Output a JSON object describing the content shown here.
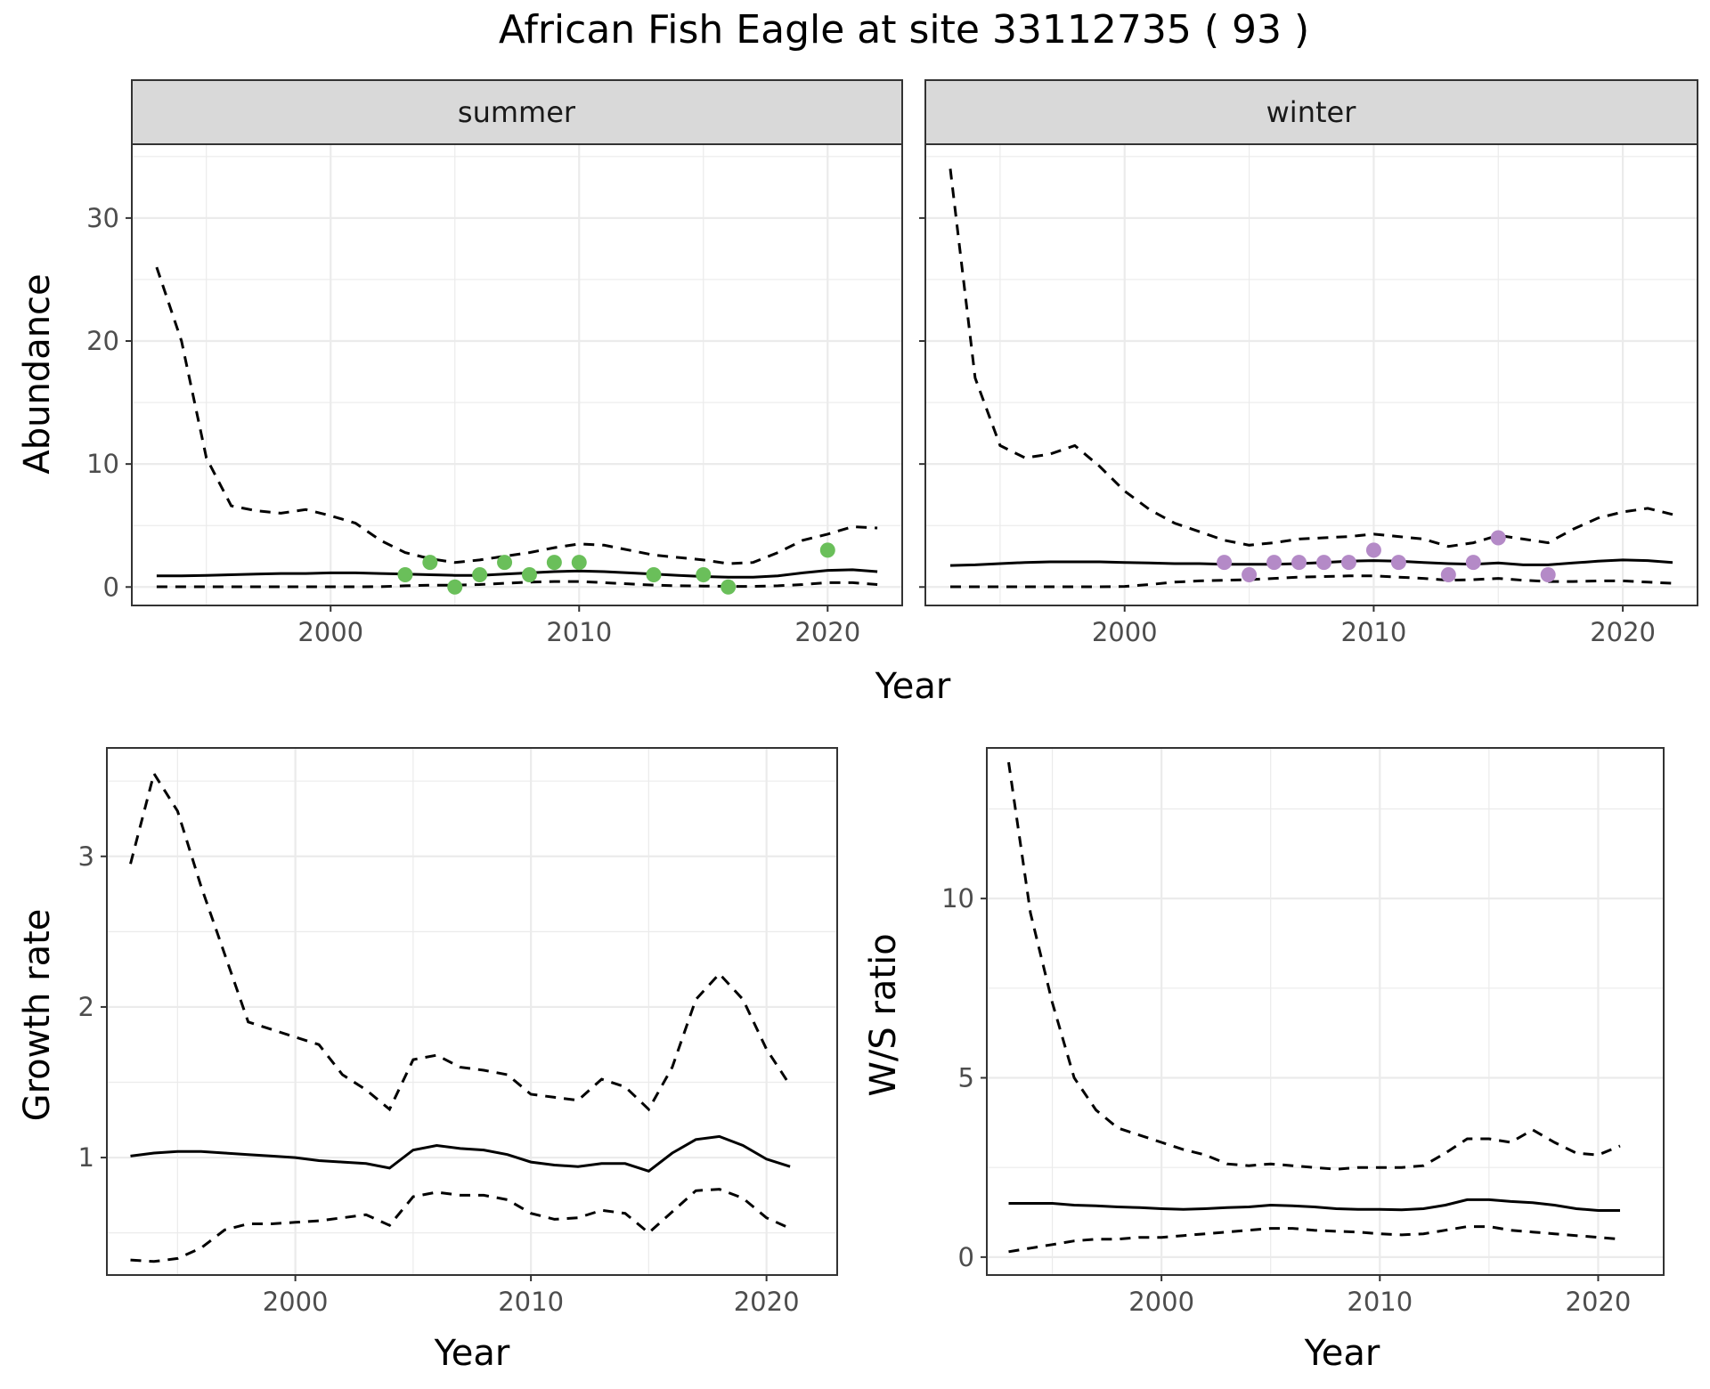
{
  "figure": {
    "title": "African Fish Eagle at site 33112735 ( 93 )"
  },
  "colors": {
    "summer_points": "#6abf5a",
    "winter_points": "#b48ac7",
    "lines": "#000000",
    "strip_bg": "#d9d9d9",
    "grid": "#ebebeb",
    "panel_border": "#333333"
  },
  "chart_data": [
    {
      "type": "line",
      "facet": "summer",
      "xlabel": "Year",
      "ylabel": "Abundance",
      "xlim": [
        1992,
        2023
      ],
      "ylim": [
        -1.5,
        36
      ],
      "x_ticks": [
        2000,
        2010,
        2020
      ],
      "y_ticks": [
        0,
        10,
        20,
        30
      ],
      "grid": true,
      "series": [
        {
          "style": "dashed",
          "x": [
            1993,
            1994,
            1995,
            1996,
            1997,
            1998,
            1999,
            2000,
            2001,
            2002,
            2003,
            2004,
            2005,
            2006,
            2007,
            2008,
            2009,
            2010,
            2011,
            2012,
            2013,
            2014,
            2015,
            2016,
            2017,
            2018,
            2019,
            2020,
            2021,
            2022
          ],
          "values": [
            26,
            20,
            10.5,
            6.6,
            6.2,
            6,
            6.3,
            5.8,
            5.2,
            3.8,
            2.8,
            2.3,
            2,
            2.2,
            2.5,
            2.8,
            3.2,
            3.5,
            3.4,
            3,
            2.6,
            2.4,
            2.2,
            1.9,
            2,
            2.8,
            3.8,
            4.3,
            4.9,
            4.8
          ]
        },
        {
          "style": "solid",
          "x": [
            1993,
            1994,
            1995,
            1996,
            1997,
            1998,
            1999,
            2000,
            2001,
            2002,
            2003,
            2004,
            2005,
            2006,
            2007,
            2008,
            2009,
            2010,
            2011,
            2012,
            2013,
            2014,
            2015,
            2016,
            2017,
            2018,
            2019,
            2020,
            2021,
            2022
          ],
          "values": [
            0.9,
            0.9,
            0.95,
            1,
            1.05,
            1.1,
            1.1,
            1.15,
            1.15,
            1.1,
            1.05,
            1,
            0.95,
            0.95,
            1.05,
            1.15,
            1.25,
            1.3,
            1.25,
            1.15,
            1.05,
            0.95,
            0.85,
            0.8,
            0.8,
            0.9,
            1.15,
            1.35,
            1.4,
            1.25
          ]
        },
        {
          "style": "dashed",
          "x": [
            1993,
            1994,
            1995,
            1996,
            1997,
            1998,
            1999,
            2000,
            2001,
            2002,
            2003,
            2004,
            2005,
            2006,
            2007,
            2008,
            2009,
            2010,
            2011,
            2012,
            2013,
            2014,
            2015,
            2016,
            2017,
            2018,
            2019,
            2020,
            2021,
            2022
          ],
          "values": [
            0.02,
            0.02,
            0.02,
            0.02,
            0.02,
            0.02,
            0.02,
            0.02,
            0.02,
            0.03,
            0.1,
            0.15,
            0.15,
            0.2,
            0.3,
            0.4,
            0.45,
            0.45,
            0.35,
            0.25,
            0.15,
            0.1,
            0.08,
            0.05,
            0.05,
            0.1,
            0.2,
            0.35,
            0.35,
            0.2
          ]
        }
      ],
      "points": {
        "x": [
          2003,
          2004,
          2005,
          2006,
          2007,
          2008,
          2009,
          2010,
          2013,
          2015,
          2016,
          2020
        ],
        "values": [
          1,
          2,
          0,
          1,
          2,
          1,
          2,
          2,
          1,
          1,
          0,
          3
        ]
      }
    },
    {
      "type": "line",
      "facet": "winter",
      "xlabel": "Year",
      "ylabel": "Abundance",
      "xlim": [
        1992,
        2023
      ],
      "ylim": [
        -1.5,
        36
      ],
      "x_ticks": [
        2000,
        2010,
        2020
      ],
      "y_ticks": [
        0,
        10,
        20,
        30
      ],
      "grid": true,
      "series": [
        {
          "style": "dashed",
          "x": [
            1993,
            1994,
            1995,
            1996,
            1997,
            1998,
            1999,
            2000,
            2001,
            2002,
            2003,
            2004,
            2005,
            2006,
            2007,
            2008,
            2009,
            2010,
            2011,
            2012,
            2013,
            2014,
            2015,
            2016,
            2017,
            2018,
            2019,
            2020,
            2021,
            2022
          ],
          "values": [
            34,
            17,
            11.5,
            10.5,
            10.8,
            11.5,
            9.8,
            7.8,
            6.3,
            5.2,
            4.5,
            3.8,
            3.4,
            3.6,
            3.9,
            4,
            4.1,
            4.3,
            4.1,
            3.9,
            3.3,
            3.6,
            4.2,
            3.9,
            3.6,
            4.7,
            5.6,
            6.1,
            6.4,
            5.9
          ]
        },
        {
          "style": "solid",
          "x": [
            1993,
            1994,
            1995,
            1996,
            1997,
            1998,
            1999,
            2000,
            2001,
            2002,
            2003,
            2004,
            2005,
            2006,
            2007,
            2008,
            2009,
            2010,
            2011,
            2012,
            2013,
            2014,
            2015,
            2016,
            2017,
            2018,
            2019,
            2020,
            2021,
            2022
          ],
          "values": [
            1.75,
            1.8,
            1.9,
            2,
            2.05,
            2.05,
            2.05,
            2,
            1.95,
            1.9,
            1.9,
            1.85,
            1.85,
            1.85,
            1.9,
            2,
            2.1,
            2.15,
            2.1,
            2,
            1.9,
            1.85,
            1.95,
            1.8,
            1.8,
            1.95,
            2.1,
            2.2,
            2.15,
            2
          ]
        },
        {
          "style": "dashed",
          "x": [
            1993,
            1994,
            1995,
            1996,
            1997,
            1998,
            1999,
            2000,
            2001,
            2002,
            2003,
            2004,
            2005,
            2006,
            2007,
            2008,
            2009,
            2010,
            2011,
            2012,
            2013,
            2014,
            2015,
            2016,
            2017,
            2018,
            2019,
            2020,
            2021,
            2022
          ],
          "values": [
            0.02,
            0.02,
            0.02,
            0.02,
            0.02,
            0.02,
            0.02,
            0.05,
            0.2,
            0.4,
            0.5,
            0.55,
            0.6,
            0.7,
            0.8,
            0.85,
            0.9,
            0.9,
            0.8,
            0.7,
            0.55,
            0.6,
            0.7,
            0.55,
            0.45,
            0.45,
            0.5,
            0.5,
            0.4,
            0.3
          ]
        }
      ],
      "points": {
        "x": [
          2004,
          2005,
          2006,
          2007,
          2008,
          2009,
          2010,
          2011,
          2013,
          2014,
          2015,
          2017
        ],
        "values": [
          2,
          1,
          2,
          2,
          2,
          2,
          3,
          2,
          1,
          2,
          4,
          1
        ]
      }
    },
    {
      "type": "line",
      "xlabel": "Year",
      "ylabel": "Growth rate",
      "xlim": [
        1992,
        2023
      ],
      "ylim": [
        0.22,
        3.72
      ],
      "x_ticks": [
        2000,
        2010,
        2020
      ],
      "y_ticks": [
        1,
        2,
        3
      ],
      "grid": true,
      "series": [
        {
          "style": "dashed",
          "x": [
            1993,
            1994,
            1995,
            1996,
            1997,
            1998,
            1999,
            2000,
            2001,
            2002,
            2003,
            2004,
            2005,
            2006,
            2007,
            2008,
            2009,
            2010,
            2011,
            2012,
            2013,
            2014,
            2015,
            2016,
            2017,
            2018,
            2019,
            2020,
            2021
          ],
          "values": [
            2.95,
            3.55,
            3.3,
            2.8,
            2.35,
            1.9,
            1.85,
            1.8,
            1.75,
            1.55,
            1.45,
            1.32,
            1.65,
            1.68,
            1.6,
            1.58,
            1.55,
            1.42,
            1.4,
            1.38,
            1.52,
            1.47,
            1.32,
            1.6,
            2.05,
            2.22,
            2.05,
            1.72,
            1.48
          ]
        },
        {
          "style": "solid",
          "x": [
            1993,
            1994,
            1995,
            1996,
            1997,
            1998,
            1999,
            2000,
            2001,
            2002,
            2003,
            2004,
            2005,
            2006,
            2007,
            2008,
            2009,
            2010,
            2011,
            2012,
            2013,
            2014,
            2015,
            2016,
            2017,
            2018,
            2019,
            2020,
            2021
          ],
          "values": [
            1.01,
            1.03,
            1.04,
            1.04,
            1.03,
            1.02,
            1.01,
            1,
            0.98,
            0.97,
            0.96,
            0.93,
            1.05,
            1.08,
            1.06,
            1.05,
            1.02,
            0.97,
            0.95,
            0.94,
            0.96,
            0.96,
            0.91,
            1.03,
            1.12,
            1.14,
            1.08,
            0.99,
            0.94
          ]
        },
        {
          "style": "dashed",
          "x": [
            1993,
            1994,
            1995,
            1996,
            1997,
            1998,
            1999,
            2000,
            2001,
            2002,
            2003,
            2004,
            2005,
            2006,
            2007,
            2008,
            2009,
            2010,
            2011,
            2012,
            2013,
            2014,
            2015,
            2016,
            2017,
            2018,
            2019,
            2020,
            2021
          ],
          "values": [
            0.32,
            0.31,
            0.33,
            0.4,
            0.52,
            0.56,
            0.56,
            0.57,
            0.58,
            0.6,
            0.62,
            0.55,
            0.74,
            0.77,
            0.75,
            0.75,
            0.72,
            0.63,
            0.59,
            0.6,
            0.65,
            0.63,
            0.5,
            0.64,
            0.78,
            0.79,
            0.73,
            0.6,
            0.53
          ]
        }
      ]
    },
    {
      "type": "line",
      "xlabel": "Year",
      "ylabel": "W/S ratio",
      "xlim": [
        1992,
        2023
      ],
      "ylim": [
        -0.5,
        14.2
      ],
      "x_ticks": [
        2000,
        2010,
        2020
      ],
      "y_ticks": [
        0,
        5,
        10
      ],
      "grid": true,
      "series": [
        {
          "style": "dashed",
          "x": [
            1993,
            1994,
            1995,
            1996,
            1997,
            1998,
            1999,
            2000,
            2001,
            2002,
            2003,
            2004,
            2005,
            2006,
            2007,
            2008,
            2009,
            2010,
            2011,
            2012,
            2013,
            2014,
            2015,
            2016,
            2017,
            2018,
            2019,
            2020,
            2021
          ],
          "values": [
            13.8,
            9.6,
            7.1,
            5,
            4.1,
            3.6,
            3.4,
            3.2,
            3.0,
            2.85,
            2.6,
            2.55,
            2.6,
            2.55,
            2.5,
            2.45,
            2.5,
            2.5,
            2.5,
            2.55,
            2.9,
            3.3,
            3.3,
            3.2,
            3.55,
            3.2,
            2.9,
            2.85,
            3.1
          ]
        },
        {
          "style": "solid",
          "x": [
            1993,
            1994,
            1995,
            1996,
            1997,
            1998,
            1999,
            2000,
            2001,
            2002,
            2003,
            2004,
            2005,
            2006,
            2007,
            2008,
            2009,
            2010,
            2011,
            2012,
            2013,
            2014,
            2015,
            2016,
            2017,
            2018,
            2019,
            2020,
            2021
          ],
          "values": [
            1.5,
            1.5,
            1.5,
            1.45,
            1.43,
            1.4,
            1.38,
            1.35,
            1.33,
            1.35,
            1.38,
            1.4,
            1.45,
            1.43,
            1.4,
            1.35,
            1.33,
            1.33,
            1.32,
            1.35,
            1.45,
            1.6,
            1.6,
            1.55,
            1.52,
            1.45,
            1.35,
            1.3,
            1.3
          ]
        },
        {
          "style": "dashed",
          "x": [
            1993,
            1994,
            1995,
            1996,
            1997,
            1998,
            1999,
            2000,
            2001,
            2002,
            2003,
            2004,
            2005,
            2006,
            2007,
            2008,
            2009,
            2010,
            2011,
            2012,
            2013,
            2014,
            2015,
            2016,
            2017,
            2018,
            2019,
            2020,
            2021
          ],
          "values": [
            0.15,
            0.25,
            0.35,
            0.45,
            0.5,
            0.5,
            0.55,
            0.55,
            0.6,
            0.65,
            0.7,
            0.75,
            0.8,
            0.8,
            0.75,
            0.72,
            0.7,
            0.65,
            0.62,
            0.65,
            0.75,
            0.85,
            0.85,
            0.75,
            0.7,
            0.65,
            0.6,
            0.55,
            0.5
          ]
        }
      ]
    }
  ],
  "panels": [
    {
      "strip": "summer"
    },
    {
      "strip": "winter"
    }
  ],
  "top_row": {
    "xlabel": "Year",
    "ylabel": "Abundance"
  },
  "bottom_left": {
    "xlabel": "Year",
    "ylabel": "Growth rate"
  },
  "bottom_right": {
    "xlabel": "Year",
    "ylabel": "W/S ratio"
  }
}
